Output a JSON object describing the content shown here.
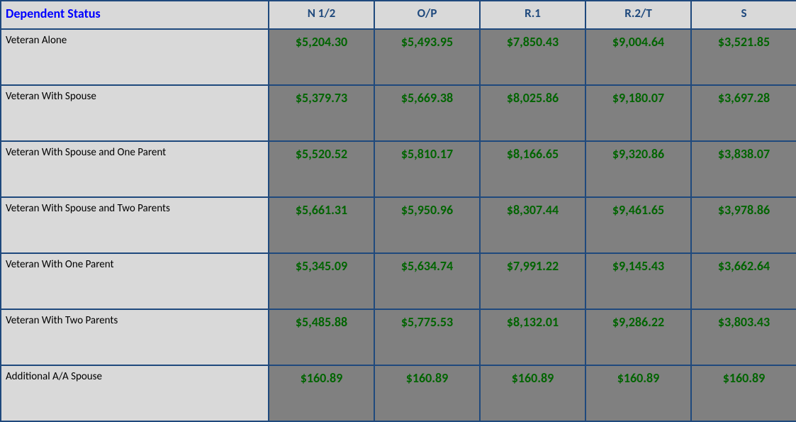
{
  "colors": {
    "border": "#1f497d",
    "header_bg": "#d9d9d9",
    "header_first_text": "#0000ff",
    "header_text": "#1f497d",
    "label_bg": "#d9d9d9",
    "label_text": "#000000",
    "value_bg": "#808080",
    "value_text": "#006400"
  },
  "typography": {
    "header_first_fontsize": 18,
    "header_fontsize": 17,
    "label_fontsize": 15,
    "value_fontsize": 18
  },
  "layout": {
    "first_col_width": 378,
    "data_col_width": 149,
    "header_row_height": 40,
    "body_row_height": 79,
    "border_width": 2
  },
  "table": {
    "header_first": "Dependent Status",
    "columns": [
      "N 1/2",
      "O/P",
      "R.1",
      "R.2/T",
      "S"
    ],
    "rows": [
      {
        "label": "Veteran Alone",
        "values": [
          "$5,204.30",
          "$5,493.95",
          "$7,850.43",
          "$9,004.64",
          "$3,521.85"
        ]
      },
      {
        "label": "Veteran With Spouse",
        "values": [
          "$5,379.73",
          "$5,669.38",
          "$8,025.86",
          "$9,180.07",
          "$3,697.28"
        ]
      },
      {
        "label": "Veteran With Spouse and One Parent",
        "values": [
          "$5,520.52",
          "$5,810.17",
          "$8,166.65",
          "$9,320.86",
          "$3,838.07"
        ]
      },
      {
        "label": "Veteran With Spouse and Two Parents",
        "values": [
          "$5,661.31",
          "$5,950.96",
          "$8,307.44",
          "$9,461.65",
          "$3,978.86"
        ]
      },
      {
        "label": "Veteran With One Parent",
        "values": [
          "$5,345.09",
          "$5,634.74",
          "$7,991.22",
          "$9,145.43",
          "$3,662.64"
        ]
      },
      {
        "label": "Veteran With Two Parents",
        "values": [
          "$5,485.88",
          "$5,775.53",
          "$8,132.01",
          "$9,286.22",
          "$3,803.43"
        ]
      },
      {
        "label": "Additional A/A Spouse",
        "values": [
          "$160.89",
          "$160.89",
          "$160.89",
          "$160.89",
          "$160.89"
        ]
      }
    ]
  }
}
